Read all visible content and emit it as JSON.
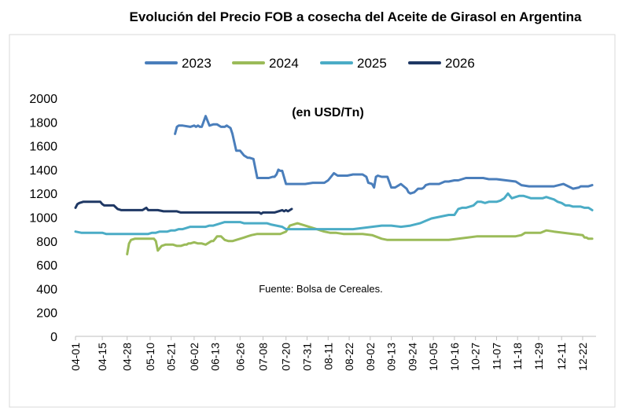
{
  "chart_data": {
    "type": "line",
    "title": "Evolución del Precio FOB a cosecha del Aceite de Girasol en Argentina",
    "subtitle": "(en USD/Tn)",
    "source_note": "Fuente: Bolsa de Cereales.",
    "ylim": [
      0,
      2000
    ],
    "yticks": [
      0,
      200,
      400,
      600,
      800,
      1000,
      1200,
      1400,
      1600,
      1800,
      2000
    ],
    "x_start": "04-01",
    "x_end": "12-30",
    "xtick_labels": [
      "04-01",
      "04-15",
      "04-28",
      "05-10",
      "05-21",
      "06-02",
      "06-13",
      "06-26",
      "07-08",
      "07-20",
      "07-31",
      "08-11",
      "08-22",
      "09-02",
      "09-13",
      "09-24",
      "10-05",
      "10-16",
      "10-27",
      "11-07",
      "11-18",
      "11-29",
      "12-11",
      "12-22"
    ],
    "xticks": [
      0,
      14,
      27,
      39,
      50,
      62,
      73,
      86,
      98,
      110,
      121,
      132,
      143,
      154,
      165,
      176,
      187,
      198,
      209,
      220,
      231,
      242,
      254,
      265
    ],
    "grid": false,
    "legend_position": "top",
    "series": [
      {
        "name": "2023",
        "color": "#4a7ebb",
        "x": [
          52,
          53,
          54,
          56,
          60,
          62,
          63,
          64,
          65,
          66,
          68,
          70,
          72,
          74,
          76,
          78,
          79,
          80,
          81,
          82,
          84,
          86,
          88,
          90,
          91,
          93,
          95,
          97,
          99,
          101,
          103,
          104,
          105,
          106,
          107,
          108,
          110,
          112,
          114,
          116,
          120,
          124,
          127,
          130,
          132,
          133,
          135,
          137,
          140,
          142,
          145,
          148,
          150,
          152,
          153,
          155,
          156,
          157,
          158,
          160,
          163,
          165,
          167,
          170,
          173,
          174,
          175,
          177,
          179,
          181,
          182,
          183,
          185,
          187,
          190,
          193,
          195,
          198,
          200,
          202,
          204,
          207,
          210,
          213,
          216,
          220,
          225,
          230,
          233,
          237,
          240,
          243,
          246,
          250,
          255,
          260,
          263,
          264,
          265,
          266,
          268,
          270
        ],
        "y": [
          1700,
          1760,
          1770,
          1770,
          1760,
          1770,
          1760,
          1770,
          1760,
          1760,
          1850,
          1770,
          1780,
          1780,
          1760,
          1760,
          1770,
          1760,
          1750,
          1700,
          1560,
          1560,
          1520,
          1500,
          1500,
          1490,
          1330,
          1330,
          1330,
          1330,
          1340,
          1340,
          1360,
          1400,
          1390,
          1390,
          1280,
          1280,
          1280,
          1280,
          1280,
          1290,
          1290,
          1290,
          1310,
          1330,
          1370,
          1350,
          1350,
          1350,
          1360,
          1360,
          1360,
          1340,
          1290,
          1280,
          1250,
          1340,
          1350,
          1340,
          1340,
          1250,
          1250,
          1280,
          1240,
          1210,
          1200,
          1210,
          1240,
          1240,
          1250,
          1270,
          1280,
          1280,
          1280,
          1300,
          1300,
          1310,
          1310,
          1320,
          1330,
          1330,
          1330,
          1330,
          1320,
          1320,
          1310,
          1300,
          1270,
          1260,
          1260,
          1260,
          1260,
          1260,
          1280,
          1240,
          1250,
          1260,
          1260,
          1260,
          1260,
          1270
        ]
      },
      {
        "name": "2024",
        "color": "#9bbb59",
        "x": [
          27,
          28,
          29,
          31,
          33,
          36,
          39,
          40,
          41,
          42,
          43,
          45,
          47,
          49,
          51,
          53,
          55,
          57,
          58,
          59,
          60,
          62,
          64,
          66,
          68,
          70,
          71,
          72,
          73,
          74,
          76,
          78,
          80,
          82,
          84,
          86,
          88,
          90,
          92,
          95,
          98,
          100,
          102,
          104,
          107,
          110,
          112,
          114,
          116,
          118,
          120,
          122,
          124,
          126,
          128,
          130,
          133,
          136,
          140,
          145,
          150,
          155,
          160,
          163,
          166,
          170,
          175,
          180,
          185,
          190,
          195,
          200,
          205,
          210,
          215,
          220,
          225,
          230,
          233,
          235,
          238,
          240,
          243,
          246,
          250,
          255,
          260,
          265,
          266,
          267,
          268,
          270
        ],
        "y": [
          690,
          780,
          810,
          820,
          820,
          820,
          820,
          820,
          820,
          800,
          720,
          760,
          770,
          770,
          770,
          760,
          760,
          770,
          770,
          780,
          780,
          790,
          780,
          780,
          770,
          790,
          800,
          800,
          820,
          840,
          840,
          810,
          800,
          800,
          810,
          820,
          830,
          840,
          850,
          860,
          860,
          860,
          860,
          860,
          860,
          880,
          930,
          940,
          950,
          940,
          930,
          920,
          910,
          900,
          890,
          880,
          870,
          870,
          860,
          860,
          860,
          850,
          820,
          810,
          810,
          810,
          810,
          810,
          810,
          810,
          810,
          820,
          830,
          840,
          840,
          840,
          840,
          840,
          850,
          870,
          870,
          870,
          870,
          890,
          880,
          870,
          860,
          850,
          830,
          830,
          820,
          820
        ]
      },
      {
        "name": "2025",
        "color": "#4bacc6",
        "x": [
          0,
          3,
          6,
          9,
          12,
          14,
          16,
          18,
          20,
          22,
          24,
          26,
          28,
          30,
          32,
          34,
          36,
          38,
          40,
          42,
          44,
          46,
          48,
          50,
          52,
          54,
          56,
          58,
          60,
          62,
          64,
          66,
          68,
          70,
          72,
          74,
          76,
          78,
          80,
          82,
          84,
          86,
          88,
          90,
          92,
          94,
          96,
          98,
          100,
          102,
          105,
          108,
          110,
          112,
          115,
          118,
          121,
          125,
          130,
          135,
          140,
          145,
          150,
          155,
          160,
          165,
          170,
          175,
          180,
          183,
          186,
          189,
          192,
          195,
          198,
          200,
          202,
          204,
          206,
          208,
          210,
          212,
          214,
          216,
          218,
          220,
          222,
          223,
          224,
          226,
          228,
          230,
          232,
          234,
          236,
          238,
          240,
          242,
          244,
          246,
          248,
          250,
          252,
          254,
          256,
          258,
          260,
          262,
          264,
          266,
          268,
          270
        ],
        "y": [
          880,
          870,
          870,
          870,
          870,
          870,
          860,
          860,
          860,
          860,
          860,
          860,
          860,
          860,
          860,
          860,
          860,
          860,
          870,
          870,
          880,
          880,
          880,
          890,
          890,
          900,
          900,
          910,
          920,
          920,
          920,
          920,
          920,
          930,
          930,
          940,
          950,
          960,
          960,
          960,
          960,
          960,
          950,
          950,
          950,
          950,
          950,
          950,
          950,
          940,
          930,
          920,
          900,
          900,
          900,
          900,
          900,
          900,
          900,
          900,
          900,
          900,
          910,
          920,
          930,
          930,
          920,
          930,
          950,
          970,
          990,
          1000,
          1010,
          1020,
          1020,
          1070,
          1080,
          1080,
          1090,
          1100,
          1130,
          1130,
          1120,
          1130,
          1130,
          1130,
          1140,
          1150,
          1160,
          1200,
          1160,
          1170,
          1180,
          1180,
          1170,
          1160,
          1160,
          1160,
          1160,
          1170,
          1160,
          1150,
          1130,
          1120,
          1100,
          1100,
          1090,
          1090,
          1090,
          1080,
          1080,
          1060
        ]
      },
      {
        "name": "2026",
        "color": "#1f3864",
        "x": [
          0,
          1,
          2,
          4,
          7,
          10,
          12,
          13,
          14,
          15,
          16,
          18,
          20,
          22,
          24,
          25,
          27,
          29,
          31,
          33,
          35,
          36,
          37,
          38,
          40,
          43,
          46,
          49,
          51,
          52,
          53,
          55,
          58,
          62,
          66,
          70,
          74,
          78,
          82,
          86,
          90,
          94,
          96,
          97,
          98,
          100,
          102,
          104,
          106,
          108,
          109,
          110,
          111,
          112,
          113
        ],
        "y": [
          1080,
          1110,
          1120,
          1130,
          1130,
          1130,
          1130,
          1130,
          1110,
          1100,
          1100,
          1100,
          1100,
          1070,
          1060,
          1060,
          1060,
          1060,
          1060,
          1060,
          1060,
          1070,
          1080,
          1060,
          1060,
          1060,
          1050,
          1050,
          1050,
          1050,
          1050,
          1040,
          1040,
          1040,
          1040,
          1040,
          1040,
          1040,
          1040,
          1040,
          1040,
          1040,
          1040,
          1030,
          1040,
          1040,
          1040,
          1040,
          1050,
          1060,
          1050,
          1060,
          1050,
          1060,
          1070
        ]
      }
    ]
  }
}
